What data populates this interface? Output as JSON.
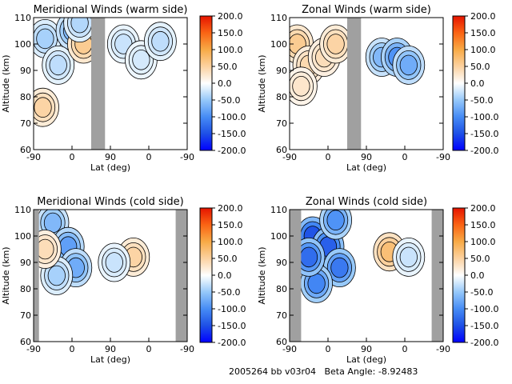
{
  "figure": {
    "footer": {
      "run_id": "2005264 bb v03r04",
      "beta_label": "Beta Angle:",
      "beta_value": "-8.92483"
    }
  },
  "chart_data": [
    {
      "type": "heatmap",
      "title": "Meridional Winds (warm side)",
      "xlabel": "Lat (deg)",
      "ylabel": "Altitude (km)",
      "x_ticks": [
        "-90",
        "0",
        "90",
        "0",
        "-90"
      ],
      "y_ticks": [
        "60",
        "70",
        "80",
        "90",
        "100",
        "110"
      ],
      "ylim": [
        60,
        110
      ],
      "colorbar": {
        "ticks": [
          "200.0",
          "150.0",
          "100.0",
          "50.0",
          "0.0",
          "-50.0",
          "-100.0",
          "-150.0",
          "-200.0"
        ],
        "range": [
          -200,
          200
        ]
      },
      "no_data_bands": [
        [
          0.75,
          0.93
        ]
      ],
      "blobs": [
        {
          "x": 0.15,
          "y": 102,
          "value": -40
        },
        {
          "x": 0.5,
          "y": 105,
          "value": -60
        },
        {
          "x": 0.32,
          "y": 92,
          "value": -30
        },
        {
          "x": 0.12,
          "y": 76,
          "value": 45
        },
        {
          "x": 0.65,
          "y": 100,
          "value": 55
        },
        {
          "x": 0.6,
          "y": 108,
          "value": -35
        },
        {
          "x": 1.17,
          "y": 100,
          "value": -25
        },
        {
          "x": 1.4,
          "y": 94,
          "value": -20
        },
        {
          "x": 1.65,
          "y": 101,
          "value": -30
        }
      ]
    },
    {
      "type": "heatmap",
      "title": "Zonal Winds (warm side)",
      "xlabel": "Lat (deg)",
      "ylabel": "Altitude (km)",
      "x_ticks": [
        "-90",
        "0",
        "90",
        "0",
        "-90"
      ],
      "y_ticks": [
        "60",
        "70",
        "80",
        "90",
        "100",
        "110"
      ],
      "ylim": [
        60,
        110
      ],
      "colorbar": {
        "ticks": [
          "200.0",
          "150.0",
          "100.0",
          "50.0",
          "0.0",
          "-50.0",
          "-100.0",
          "-150.0",
          "-200.0"
        ],
        "range": [
          -200,
          200
        ]
      },
      "no_data_bands": [
        [
          0.75,
          0.93
        ]
      ],
      "blobs": [
        {
          "x": 0.1,
          "y": 100,
          "value": 55
        },
        {
          "x": 0.25,
          "y": 92,
          "value": 40
        },
        {
          "x": 0.45,
          "y": 95,
          "value": 35
        },
        {
          "x": 0.6,
          "y": 100,
          "value": 45
        },
        {
          "x": 0.15,
          "y": 84,
          "value": 25
        },
        {
          "x": 1.2,
          "y": 95,
          "value": -60
        },
        {
          "x": 1.4,
          "y": 95,
          "value": -90
        },
        {
          "x": 1.55,
          "y": 92,
          "value": -70
        }
      ]
    },
    {
      "type": "heatmap",
      "title": "Meridional Winds (cold side)",
      "xlabel": "Lat (deg)",
      "ylabel": "Altitude (km)",
      "x_ticks": [
        "-90",
        "0",
        "90",
        "0",
        "-90"
      ],
      "y_ticks": [
        "60",
        "70",
        "80",
        "90",
        "100",
        "110"
      ],
      "ylim": [
        60,
        110
      ],
      "colorbar": {
        "ticks": [
          "200.0",
          "150.0",
          "100.0",
          "50.0",
          "0.0",
          "-50.0",
          "-100.0",
          "-150.0",
          "-200.0"
        ],
        "range": [
          -200,
          200
        ]
      },
      "no_data_bands": [
        [
          0.0,
          0.07
        ],
        [
          1.85,
          2.0
        ]
      ],
      "blobs": [
        {
          "x": 0.25,
          "y": 105,
          "value": -60
        },
        {
          "x": 0.45,
          "y": 96,
          "value": -80
        },
        {
          "x": 0.55,
          "y": 88,
          "value": -70
        },
        {
          "x": 0.3,
          "y": 85,
          "value": -40
        },
        {
          "x": 0.15,
          "y": 95,
          "value": 35
        },
        {
          "x": 1.3,
          "y": 92,
          "value": 45
        },
        {
          "x": 1.05,
          "y": 90,
          "value": -25
        }
      ]
    },
    {
      "type": "heatmap",
      "title": "Zonal Winds (cold side)",
      "xlabel": "Lat (deg)",
      "ylabel": "Altitude (km)",
      "x_ticks": [
        "-90",
        "0",
        "90",
        "0",
        "-90"
      ],
      "y_ticks": [
        "60",
        "70",
        "80",
        "90",
        "100",
        "110"
      ],
      "ylim": [
        60,
        110
      ],
      "colorbar": {
        "ticks": [
          "200.0",
          "150.0",
          "100.0",
          "50.0",
          "0.0",
          "-50.0",
          "-100.0",
          "-150.0",
          "-200.0"
        ],
        "range": [
          -200,
          200
        ]
      },
      "no_data_bands": [
        [
          0.0,
          0.15
        ],
        [
          1.85,
          2.0
        ]
      ],
      "blobs": [
        {
          "x": 0.3,
          "y": 100,
          "value": -140
        },
        {
          "x": 0.5,
          "y": 96,
          "value": -130
        },
        {
          "x": 0.65,
          "y": 88,
          "value": -110
        },
        {
          "x": 0.35,
          "y": 82,
          "value": -100
        },
        {
          "x": 0.25,
          "y": 92,
          "value": -120
        },
        {
          "x": 0.6,
          "y": 106,
          "value": -90
        },
        {
          "x": 1.3,
          "y": 94,
          "value": 70
        },
        {
          "x": 1.55,
          "y": 92,
          "value": -25
        }
      ]
    }
  ]
}
